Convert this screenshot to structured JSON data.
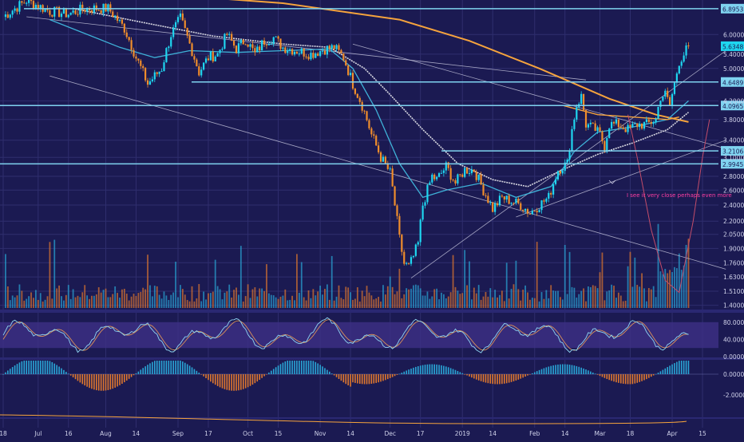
{
  "colors": {
    "background": "#1b1a52",
    "grid": "#2f2e6e",
    "up": "#1fd6f0",
    "down": "#ef8d2c",
    "hline": "#7fd3f0",
    "wma": "#f5a33d",
    "ema_slow": "#d6d6e0",
    "ema_fast": "#3fb2d8",
    "macd_up": "#2aa6d6",
    "macd_down": "#e0782e",
    "stoch_k": "#8fd7f2",
    "stoch_d": "#d9915a",
    "annotation": "#ff3fa2",
    "badge_text": "#1b1a52",
    "axis_text": "#d0d2ea"
  },
  "chart_data": {
    "type": "candlestick",
    "price_scale": "log",
    "ylim": [
      1.38,
      7.1
    ],
    "price_ticks": [
      "6.0000",
      "5.4000",
      "5.0000",
      "4.2000",
      "3.8000",
      "3.4000",
      "3.1000",
      "2.8000",
      "2.6000",
      "2.4000",
      "2.2000",
      "2.0500",
      "1.9000",
      "1.7600",
      "1.6300",
      "1.5100",
      "1.4000"
    ],
    "price_tick_values": [
      6.0,
      5.4,
      5.0,
      4.2,
      3.8,
      3.4,
      3.1,
      2.8,
      2.6,
      2.4,
      2.2,
      2.05,
      1.9,
      1.76,
      1.63,
      1.51,
      1.4
    ],
    "time_axis": [
      {
        "label": "18",
        "i": 0
      },
      {
        "label": "Jul",
        "i": 15
      },
      {
        "label": "16",
        "i": 28
      },
      {
        "label": "Aug",
        "i": 44
      },
      {
        "label": "14",
        "i": 57
      },
      {
        "label": "Sep",
        "i": 75
      },
      {
        "label": "17",
        "i": 88
      },
      {
        "label": "Oct",
        "i": 105
      },
      {
        "label": "15",
        "i": 118
      },
      {
        "label": "Nov",
        "i": 136
      },
      {
        "label": "14",
        "i": 149
      },
      {
        "label": "Dec",
        "i": 166
      },
      {
        "label": "17",
        "i": 179
      },
      {
        "label": "2019",
        "i": 197
      },
      {
        "label": "14",
        "i": 210
      },
      {
        "label": "Feb",
        "i": 228
      },
      {
        "label": "14",
        "i": 241
      },
      {
        "label": "Mar",
        "i": 256
      },
      {
        "label": "18",
        "i": 269
      },
      {
        "label": "Apr",
        "i": 287
      },
      {
        "label": "15",
        "i": 300
      }
    ],
    "horizontal_levels": [
      {
        "value": 6.8953,
        "label": "6.8953"
      },
      {
        "value": 4.6489,
        "label": "4.6489"
      },
      {
        "value": 4.0965,
        "label": "4.0965"
      },
      {
        "value": 3.2106,
        "label": "3.2106"
      },
      {
        "value": 2.9945,
        "label": "2.9945"
      }
    ],
    "last_price": {
      "value": 5.6348,
      "label": "5.6348"
    },
    "annotation": "I see it very close perhaps even more",
    "anchors": [
      [
        0,
        6.6
      ],
      [
        10,
        7.2
      ],
      [
        20,
        6.8
      ],
      [
        28,
        6.7
      ],
      [
        35,
        6.9
      ],
      [
        45,
        6.9
      ],
      [
        52,
        6.2
      ],
      [
        57,
        5.3
      ],
      [
        62,
        4.6
      ],
      [
        68,
        5.0
      ],
      [
        72,
        6.0
      ],
      [
        76,
        6.55
      ],
      [
        80,
        5.7
      ],
      [
        84,
        4.9
      ],
      [
        88,
        5.3
      ],
      [
        92,
        5.4
      ],
      [
        96,
        6.0
      ],
      [
        100,
        5.55
      ],
      [
        104,
        5.85
      ],
      [
        108,
        5.4
      ],
      [
        112,
        5.8
      ],
      [
        116,
        5.9
      ],
      [
        120,
        5.6
      ],
      [
        126,
        5.5
      ],
      [
        132,
        5.4
      ],
      [
        138,
        5.55
      ],
      [
        142,
        5.6
      ],
      [
        146,
        5.3
      ],
      [
        150,
        4.6
      ],
      [
        154,
        4.1
      ],
      [
        158,
        3.5
      ],
      [
        162,
        3.1
      ],
      [
        166,
        2.85
      ],
      [
        168,
        2.4
      ],
      [
        170,
        2.0
      ],
      [
        172,
        1.75
      ],
      [
        174,
        1.72
      ],
      [
        176,
        1.82
      ],
      [
        178,
        1.95
      ],
      [
        180,
        2.4
      ],
      [
        184,
        2.8
      ],
      [
        186,
        2.75
      ],
      [
        190,
        2.95
      ],
      [
        194,
        2.7
      ],
      [
        198,
        2.9
      ],
      [
        202,
        2.9
      ],
      [
        206,
        2.6
      ],
      [
        210,
        2.35
      ],
      [
        214,
        2.5
      ],
      [
        218,
        2.45
      ],
      [
        222,
        2.4
      ],
      [
        226,
        2.3
      ],
      [
        230,
        2.4
      ],
      [
        234,
        2.5
      ],
      [
        238,
        2.9
      ],
      [
        242,
        3.0
      ],
      [
        244,
        3.6
      ],
      [
        246,
        4.1
      ],
      [
        248,
        4.3
      ],
      [
        250,
        3.7
      ],
      [
        254,
        3.6
      ],
      [
        256,
        3.5
      ],
      [
        258,
        3.3
      ],
      [
        260,
        3.7
      ],
      [
        264,
        3.7
      ],
      [
        268,
        3.6
      ],
      [
        272,
        3.7
      ],
      [
        276,
        3.7
      ],
      [
        280,
        3.8
      ],
      [
        282,
        4.3
      ],
      [
        284,
        4.35
      ],
      [
        286,
        4.1
      ],
      [
        288,
        4.6
      ],
      [
        290,
        5.2
      ],
      [
        292,
        5.4
      ],
      [
        294,
        5.6348
      ]
    ],
    "overlays": {
      "wma_slow": [
        [
          0,
          7.6
        ],
        [
          60,
          7.5
        ],
        [
          120,
          7.1
        ],
        [
          170,
          6.5
        ],
        [
          200,
          5.8
        ],
        [
          230,
          5.0
        ],
        [
          260,
          4.25
        ],
        [
          280,
          3.9
        ],
        [
          294,
          3.75
        ]
      ],
      "ema_slow": [
        [
          30,
          6.9
        ],
        [
          60,
          6.4
        ],
        [
          90,
          5.95
        ],
        [
          120,
          5.7
        ],
        [
          140,
          5.6
        ],
        [
          155,
          5.0
        ],
        [
          165,
          4.4
        ],
        [
          180,
          3.6
        ],
        [
          195,
          3.0
        ],
        [
          210,
          2.75
        ],
        [
          225,
          2.65
        ],
        [
          240,
          2.9
        ],
        [
          255,
          3.15
        ],
        [
          270,
          3.35
        ],
        [
          285,
          3.6
        ],
        [
          294,
          3.95
        ]
      ],
      "ema_fast": [
        [
          20,
          6.5
        ],
        [
          50,
          5.6
        ],
        [
          65,
          5.3
        ],
        [
          80,
          5.5
        ],
        [
          100,
          5.45
        ],
        [
          120,
          5.5
        ],
        [
          140,
          5.55
        ],
        [
          150,
          5.0
        ],
        [
          160,
          4.0
        ],
        [
          170,
          3.0
        ],
        [
          180,
          2.5
        ],
        [
          190,
          2.6
        ],
        [
          205,
          2.7
        ],
        [
          220,
          2.5
        ],
        [
          235,
          2.65
        ],
        [
          245,
          3.2
        ],
        [
          255,
          3.55
        ],
        [
          270,
          3.65
        ],
        [
          285,
          3.8
        ],
        [
          294,
          4.2
        ]
      ],
      "orange_ma": [
        [
          240,
          4.1
        ],
        [
          255,
          3.9
        ],
        [
          270,
          3.85
        ],
        [
          285,
          3.8
        ],
        [
          290,
          3.85
        ]
      ],
      "trendlines": [
        {
          "a": [
            150,
            5.7
          ],
          "b": [
            310,
            3.25
          ]
        },
        {
          "a": [
            20,
            4.8
          ],
          "b": [
            310,
            1.7
          ]
        },
        {
          "a": [
            175,
            1.62
          ],
          "b": [
            310,
            5.5
          ]
        },
        {
          "a": [
            220,
            2.25
          ],
          "b": [
            310,
            3.4
          ]
        },
        {
          "a": [
            10,
            6.6
          ],
          "b": [
            250,
            4.7
          ]
        }
      ],
      "fib_arc": [
        [
          268,
          3.9
        ],
        [
          272,
          3.1
        ],
        [
          278,
          2.1
        ],
        [
          284,
          1.6
        ],
        [
          290,
          1.5
        ],
        [
          296,
          2.2
        ],
        [
          300,
          3.1
        ],
        [
          303,
          3.8
        ]
      ]
    },
    "volume": "bars for every candle, colored by direction",
    "indicators": [
      {
        "name": "stochastic",
        "ticks": [
          "80.0000",
          "40.0000",
          "0.0000"
        ],
        "tick_values": [
          80,
          40,
          0
        ],
        "band": [
          20,
          80
        ]
      },
      {
        "name": "macd_histogram",
        "ticks": [
          "0.0000",
          "-2.0000"
        ],
        "tick_values": [
          0,
          -2
        ]
      }
    ]
  }
}
